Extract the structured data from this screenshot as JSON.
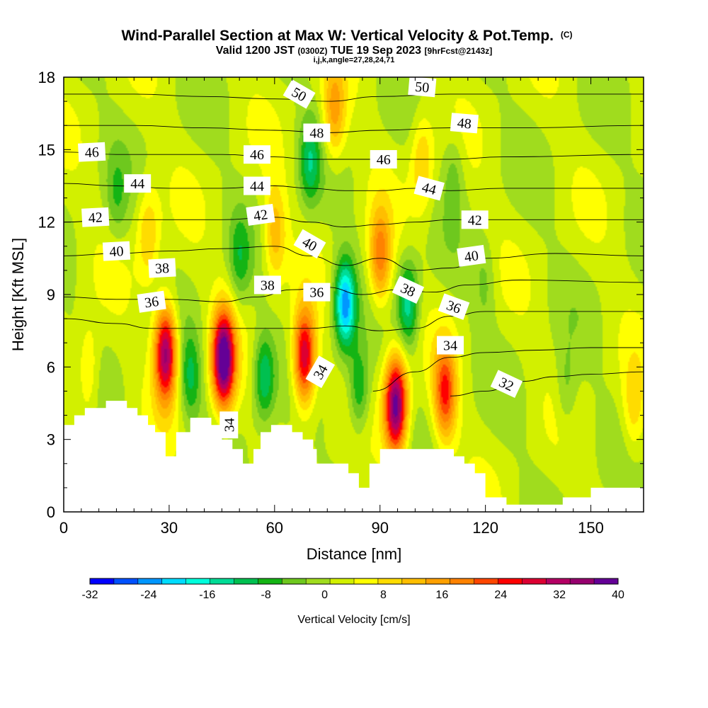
{
  "header": {
    "title_main": "Wind-Parallel Section at Max W: Vertical Velocity & Pot.Temp.",
    "title_copyright": "(C)",
    "valid_prefix": "Valid 1200 JST",
    "valid_utc": "(0300Z)",
    "valid_date": "TUE 19 Sep 2023",
    "forecast_info": "[9hrFcst@2143z]",
    "section_params": "i,j,k,angle=27,28,24,71"
  },
  "chart_data": {
    "type": "heatmap",
    "xlabel": "Distance [nm]",
    "ylabel": "Height [Kft MSL]",
    "xlim": [
      0,
      165
    ],
    "ylim": [
      0,
      18
    ],
    "x_ticks": [
      "0",
      "30",
      "60",
      "90",
      "120",
      "150"
    ],
    "y_ticks": [
      "0",
      "3",
      "6",
      "9",
      "12",
      "15",
      "18"
    ],
    "colorbar": {
      "label": "Vertical Velocity [cm/s]",
      "min": -32,
      "max": 40,
      "step": 4,
      "tick_labels": [
        "-32",
        "-24",
        "-16",
        "-8",
        "0",
        "8",
        "16",
        "24",
        "32",
        "40"
      ],
      "colors": [
        "#0000ff",
        "#0050ff",
        "#0096ff",
        "#00dcff",
        "#00ffdc",
        "#00dc96",
        "#00c050",
        "#14b414",
        "#6ec81e",
        "#a0dc1e",
        "#d2f000",
        "#ffff00",
        "#ffdc00",
        "#ffbe00",
        "#ffa000",
        "#ff8200",
        "#ff4600",
        "#ff0000",
        "#dc0032",
        "#b40064",
        "#96006e",
        "#640096"
      ]
    },
    "updrafts": [
      {
        "x": 29,
        "z": 6.6,
        "peak": 34
      },
      {
        "x": 45.5,
        "z": 6.3,
        "peak": 40
      },
      {
        "x": 68.5,
        "z": 6.4,
        "peak": 30
      },
      {
        "x": 94.5,
        "z": 4.4,
        "peak": 38
      },
      {
        "x": 108.5,
        "z": 4.9,
        "peak": 22
      },
      {
        "x": 102,
        "z": 14.5,
        "peak": 10
      },
      {
        "x": 90,
        "z": 10.5,
        "peak": 18
      },
      {
        "x": 60,
        "z": 11.5,
        "peak": 12
      },
      {
        "x": 77,
        "z": 16.5,
        "peak": 14
      },
      {
        "x": 24,
        "z": 11.5,
        "peak": 10
      },
      {
        "x": 7,
        "z": 5.8,
        "peak": 8
      },
      {
        "x": 162,
        "z": 4.2,
        "peak": 8
      }
    ],
    "downdrafts": [
      {
        "x": 80,
        "z": 8.6,
        "peak": -26
      },
      {
        "x": 98,
        "z": 8.6,
        "peak": -16
      },
      {
        "x": 57,
        "z": 5.6,
        "peak": -14
      },
      {
        "x": 84,
        "z": 5.0,
        "peak": -12
      },
      {
        "x": 36,
        "z": 5.6,
        "peak": -11
      },
      {
        "x": 70,
        "z": 14.5,
        "peak": -12
      },
      {
        "x": 50,
        "z": 10.5,
        "peak": -8
      },
      {
        "x": 143,
        "z": 5.0,
        "peak": -6
      },
      {
        "x": 111,
        "z": 14.0,
        "peak": -6
      },
      {
        "x": 15,
        "z": 13.0,
        "peak": -6
      },
      {
        "x": 120,
        "z": 9.5,
        "peak": -5
      }
    ],
    "terrain": [
      {
        "x": 0,
        "z": 3.6
      },
      {
        "x": 3,
        "z": 3.6
      },
      {
        "x": 3,
        "z": 4.0
      },
      {
        "x": 6,
        "z": 4.0
      },
      {
        "x": 6,
        "z": 4.3
      },
      {
        "x": 12,
        "z": 4.3
      },
      {
        "x": 12,
        "z": 4.6
      },
      {
        "x": 18,
        "z": 4.6
      },
      {
        "x": 18,
        "z": 4.3
      },
      {
        "x": 21,
        "z": 4.3
      },
      {
        "x": 21,
        "z": 4.0
      },
      {
        "x": 24,
        "z": 4.0
      },
      {
        "x": 24,
        "z": 3.6
      },
      {
        "x": 26,
        "z": 3.6
      },
      {
        "x": 26,
        "z": 3.3
      },
      {
        "x": 29,
        "z": 3.3
      },
      {
        "x": 29,
        "z": 2.3
      },
      {
        "x": 32,
        "z": 2.3
      },
      {
        "x": 32,
        "z": 3.3
      },
      {
        "x": 36,
        "z": 3.3
      },
      {
        "x": 36,
        "z": 3.9
      },
      {
        "x": 42,
        "z": 3.9
      },
      {
        "x": 42,
        "z": 3.6
      },
      {
        "x": 45,
        "z": 3.6
      },
      {
        "x": 45,
        "z": 3.0
      },
      {
        "x": 48,
        "z": 3.0
      },
      {
        "x": 48,
        "z": 2.6
      },
      {
        "x": 51,
        "z": 2.6
      },
      {
        "x": 51,
        "z": 2.0
      },
      {
        "x": 54,
        "z": 2.0
      },
      {
        "x": 54,
        "z": 2.6
      },
      {
        "x": 56,
        "z": 2.6
      },
      {
        "x": 56,
        "z": 3.3
      },
      {
        "x": 59,
        "z": 3.3
      },
      {
        "x": 59,
        "z": 3.6
      },
      {
        "x": 65,
        "z": 3.6
      },
      {
        "x": 65,
        "z": 3.3
      },
      {
        "x": 68,
        "z": 3.3
      },
      {
        "x": 68,
        "z": 3.0
      },
      {
        "x": 71,
        "z": 3.0
      },
      {
        "x": 71,
        "z": 2.6
      },
      {
        "x": 72,
        "z": 2.6
      },
      {
        "x": 72,
        "z": 2.0
      },
      {
        "x": 81,
        "z": 2.0
      },
      {
        "x": 81,
        "z": 1.6
      },
      {
        "x": 84,
        "z": 1.6
      },
      {
        "x": 84,
        "z": 1.0
      },
      {
        "x": 87,
        "z": 1.0
      },
      {
        "x": 87,
        "z": 2.0
      },
      {
        "x": 90,
        "z": 2.0
      },
      {
        "x": 90,
        "z": 2.6
      },
      {
        "x": 111,
        "z": 2.6
      },
      {
        "x": 111,
        "z": 2.3
      },
      {
        "x": 114,
        "z": 2.3
      },
      {
        "x": 114,
        "z": 2.0
      },
      {
        "x": 117,
        "z": 2.0
      },
      {
        "x": 117,
        "z": 1.6
      },
      {
        "x": 120,
        "z": 1.6
      },
      {
        "x": 120,
        "z": 0.6
      },
      {
        "x": 126,
        "z": 0.6
      },
      {
        "x": 126,
        "z": 0.3
      },
      {
        "x": 142,
        "z": 0.3
      },
      {
        "x": 142,
        "z": 0.6
      },
      {
        "x": 150,
        "z": 0.6
      },
      {
        "x": 150,
        "z": 1.0
      },
      {
        "x": 165,
        "z": 1.0
      }
    ],
    "isentropes": [
      {
        "level": "32",
        "label": true,
        "points": [
          [
            110,
            4.8
          ],
          [
            120,
            5.0
          ],
          [
            130,
            5.4
          ],
          [
            140,
            5.6
          ],
          [
            150,
            5.7
          ],
          [
            165,
            5.8
          ]
        ]
      },
      {
        "level": "34",
        "label": true,
        "points": [
          [
            88,
            5.0
          ],
          [
            100,
            5.8
          ],
          [
            110,
            6.4
          ],
          [
            120,
            6.6
          ],
          [
            135,
            6.7
          ],
          [
            150,
            6.8
          ],
          [
            165,
            6.8
          ]
        ]
      },
      {
        "level": "36",
        "label": true,
        "points": [
          [
            0,
            8.0
          ],
          [
            15,
            7.8
          ],
          [
            25,
            7.6
          ],
          [
            40,
            7.6
          ],
          [
            55,
            7.6
          ],
          [
            70,
            7.6
          ],
          [
            80,
            7.7
          ],
          [
            90,
            7.5
          ],
          [
            100,
            7.6
          ],
          [
            110,
            8.1
          ],
          [
            120,
            8.3
          ],
          [
            140,
            8.3
          ],
          [
            165,
            8.3
          ]
        ]
      },
      {
        "level": "38",
        "label": true,
        "points": [
          [
            0,
            8.9
          ],
          [
            15,
            8.8
          ],
          [
            30,
            8.8
          ],
          [
            45,
            8.7
          ],
          [
            55,
            8.9
          ],
          [
            65,
            9.2
          ],
          [
            75,
            9.3
          ],
          [
            85,
            9.0
          ],
          [
            95,
            9.2
          ],
          [
            105,
            9.1
          ],
          [
            115,
            9.4
          ],
          [
            130,
            9.6
          ],
          [
            165,
            9.5
          ]
        ]
      },
      {
        "level": "40",
        "label": true,
        "points": [
          [
            0,
            10.6
          ],
          [
            15,
            10.7
          ],
          [
            30,
            10.8
          ],
          [
            45,
            10.9
          ],
          [
            60,
            11.0
          ],
          [
            70,
            10.6
          ],
          [
            80,
            10.2
          ],
          [
            90,
            10.5
          ],
          [
            100,
            10.0
          ],
          [
            110,
            10.1
          ],
          [
            120,
            10.5
          ],
          [
            140,
            10.7
          ],
          [
            165,
            10.6
          ]
        ]
      },
      {
        "level": "42",
        "label": true,
        "points": [
          [
            0,
            12.0
          ],
          [
            15,
            12.1
          ],
          [
            30,
            12.1
          ],
          [
            45,
            12.1
          ],
          [
            60,
            12.2
          ],
          [
            70,
            12.0
          ],
          [
            80,
            11.8
          ],
          [
            90,
            11.9
          ],
          [
            100,
            12.0
          ],
          [
            110,
            12.1
          ],
          [
            125,
            12.1
          ],
          [
            165,
            12.1
          ]
        ]
      },
      {
        "level": "44",
        "label": true,
        "points": [
          [
            0,
            13.6
          ],
          [
            15,
            13.5
          ],
          [
            30,
            13.4
          ],
          [
            45,
            13.4
          ],
          [
            60,
            13.5
          ],
          [
            70,
            13.4
          ],
          [
            80,
            13.3
          ],
          [
            90,
            13.3
          ],
          [
            100,
            13.4
          ],
          [
            110,
            13.3
          ],
          [
            125,
            13.4
          ],
          [
            165,
            13.4
          ]
        ]
      },
      {
        "level": "46",
        "label": true,
        "points": [
          [
            0,
            14.9
          ],
          [
            15,
            14.8
          ],
          [
            30,
            14.8
          ],
          [
            45,
            14.8
          ],
          [
            60,
            14.7
          ],
          [
            70,
            14.6
          ],
          [
            80,
            14.6
          ],
          [
            95,
            14.6
          ],
          [
            110,
            14.6
          ],
          [
            125,
            14.7
          ],
          [
            165,
            14.8
          ]
        ]
      },
      {
        "level": "48",
        "label": true,
        "points": [
          [
            0,
            16.0
          ],
          [
            20,
            16.0
          ],
          [
            40,
            15.9
          ],
          [
            60,
            15.8
          ],
          [
            75,
            15.7
          ],
          [
            90,
            15.8
          ],
          [
            110,
            15.9
          ],
          [
            130,
            15.9
          ],
          [
            165,
            16.0
          ]
        ]
      },
      {
        "level": "50",
        "label": true,
        "points": [
          [
            0,
            17.3
          ],
          [
            20,
            17.3
          ],
          [
            40,
            17.2
          ],
          [
            60,
            17.1
          ],
          [
            75,
            17.0
          ],
          [
            90,
            17.2
          ],
          [
            110,
            17.3
          ],
          [
            130,
            17.3
          ],
          [
            165,
            17.3
          ]
        ]
      }
    ],
    "contour_labels": [
      {
        "text": "50",
        "x": 67,
        "z": 17.3,
        "rot": 30
      },
      {
        "text": "50",
        "x": 102,
        "z": 17.6,
        "rot": 5
      },
      {
        "text": "48",
        "x": 72,
        "z": 15.7,
        "rot": 0
      },
      {
        "text": "48",
        "x": 114,
        "z": 16.1,
        "rot": 5
      },
      {
        "text": "46",
        "x": 8,
        "z": 14.9,
        "rot": -3
      },
      {
        "text": "46",
        "x": 55,
        "z": 14.8,
        "rot": 0
      },
      {
        "text": "46",
        "x": 91,
        "z": 14.6,
        "rot": 0
      },
      {
        "text": "44",
        "x": 21,
        "z": 13.6,
        "rot": 0
      },
      {
        "text": "44",
        "x": 55,
        "z": 13.5,
        "rot": 0
      },
      {
        "text": "44",
        "x": 104,
        "z": 13.4,
        "rot": 15
      },
      {
        "text": "42",
        "x": 9,
        "z": 12.2,
        "rot": -3
      },
      {
        "text": "42",
        "x": 56,
        "z": 12.3,
        "rot": -8
      },
      {
        "text": "42",
        "x": 117,
        "z": 12.1,
        "rot": 0
      },
      {
        "text": "40",
        "x": 15,
        "z": 10.8,
        "rot": -3
      },
      {
        "text": "40",
        "x": 70,
        "z": 11.1,
        "rot": 30
      },
      {
        "text": "40",
        "x": 116,
        "z": 10.6,
        "rot": -8
      },
      {
        "text": "38",
        "x": 28,
        "z": 10.1,
        "rot": -3
      },
      {
        "text": "38",
        "x": 58,
        "z": 9.4,
        "rot": 0
      },
      {
        "text": "38",
        "x": 98,
        "z": 9.2,
        "rot": 25
      },
      {
        "text": "36",
        "x": 25,
        "z": 8.7,
        "rot": -8
      },
      {
        "text": "36",
        "x": 72,
        "z": 9.1,
        "rot": 0
      },
      {
        "text": "36",
        "x": 111,
        "z": 8.5,
        "rot": 20
      },
      {
        "text": "34",
        "x": 110,
        "z": 6.9,
        "rot": 0
      },
      {
        "text": "34",
        "x": 73,
        "z": 5.8,
        "rot": -60
      },
      {
        "text": "34",
        "x": 47,
        "z": 3.6,
        "rot": -90
      },
      {
        "text": "32",
        "x": 126,
        "z": 5.3,
        "rot": 25
      }
    ]
  }
}
